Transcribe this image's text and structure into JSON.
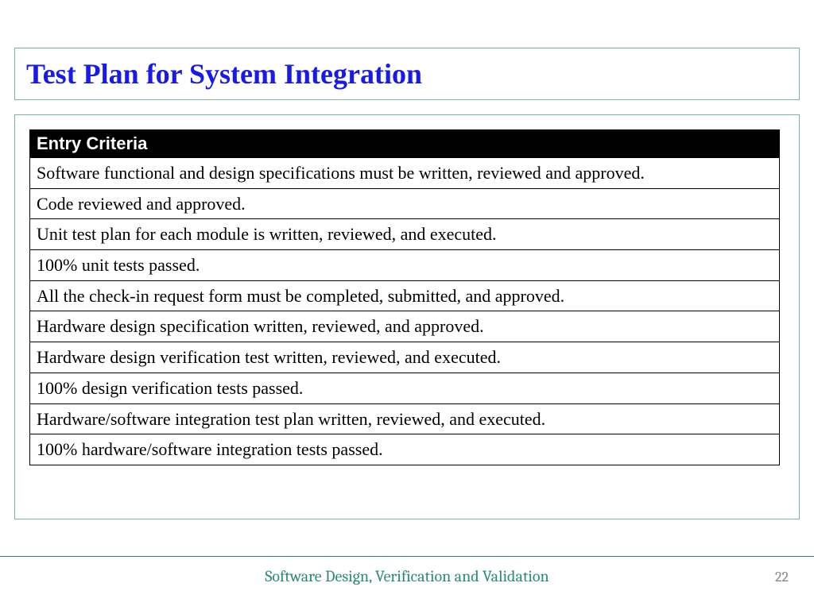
{
  "slide": {
    "title": "Test Plan for System Integration",
    "title_color": "#1a1ae6",
    "title_fontsize": 36,
    "border_color": "#6fb89f"
  },
  "table": {
    "header": "Entry Criteria",
    "header_bg": "#000000",
    "header_color": "#ffffff",
    "cell_fontsize": 22,
    "border_color": "#000000",
    "rows": [
      "Software functional and design specifications must be written, reviewed and approved.",
      "Code reviewed and approved.",
      "Unit test plan for each module is written, reviewed, and executed.",
      "100% unit tests passed.",
      "All the check-in request form must be completed, submitted, and approved.",
      "Hardware design specification written, reviewed, and approved.",
      "Hardware design verification test written, reviewed, and executed.",
      "100% design verification tests passed.",
      "Hardware/software integration test plan written, reviewed, and executed.",
      "100% hardware/software integration tests passed."
    ]
  },
  "footer": {
    "text": "Software Design, Verification and Validation",
    "text_color": "#2a8a78",
    "line_color": "#2a7a7a",
    "page_number": "22",
    "page_number_color": "#8a8a8a"
  }
}
